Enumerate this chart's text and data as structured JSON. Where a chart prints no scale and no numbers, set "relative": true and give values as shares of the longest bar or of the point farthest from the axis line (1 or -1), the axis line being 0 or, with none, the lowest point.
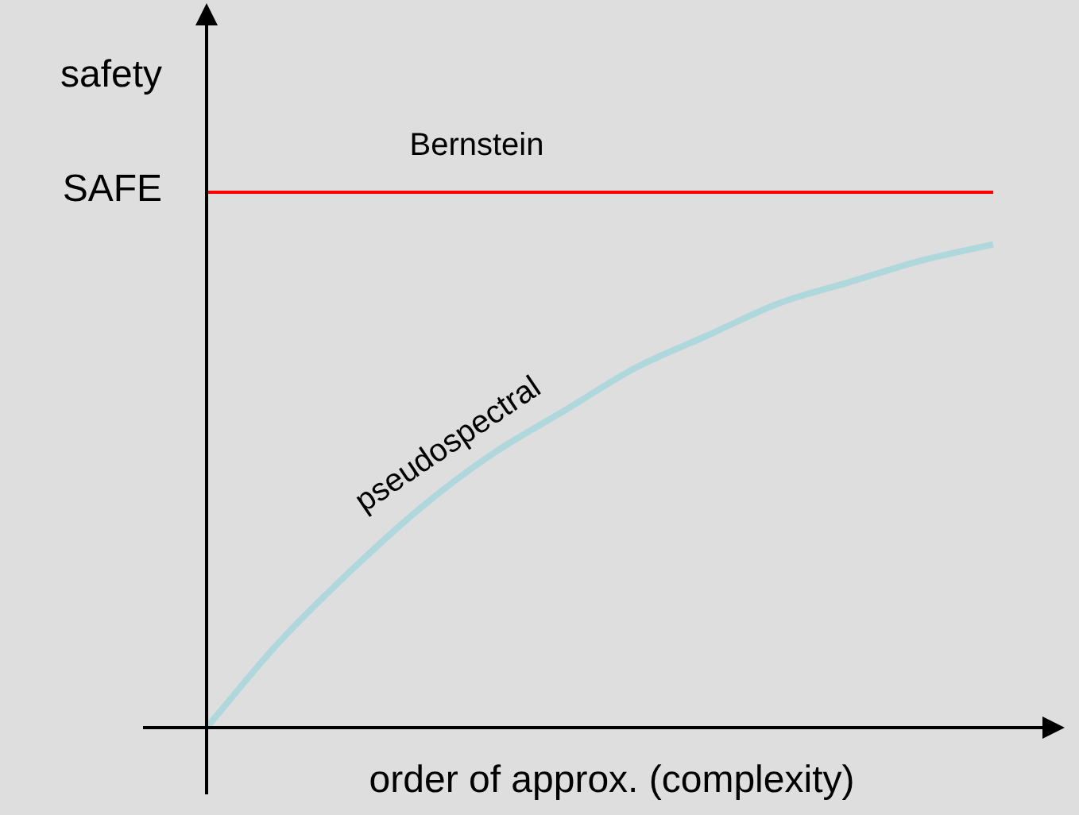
{
  "chart_data": {
    "type": "line",
    "relative": true,
    "xlabel": "order of approx. (complexity)",
    "ylabel": "safety",
    "annotations": [
      "SAFE"
    ],
    "legend": false,
    "marker": "none",
    "categories": [
      null,
      null,
      null,
      null,
      null,
      null,
      null,
      null,
      null,
      null,
      null,
      null
    ],
    "series": [
      {
        "name": "Bernstein",
        "color": "#ff0000",
        "values": [
          1,
          1,
          1,
          1,
          1,
          1,
          1,
          1,
          1,
          1,
          1,
          1
        ]
      },
      {
        "name": "pseudospectral",
        "color": "#aed8dc",
        "values": [
          0,
          0.157,
          0.29,
          0.41,
          0.51,
          0.59,
          0.67,
          0.73,
          0.79,
          0.83,
          0.87,
          0.9
        ]
      }
    ]
  }
}
